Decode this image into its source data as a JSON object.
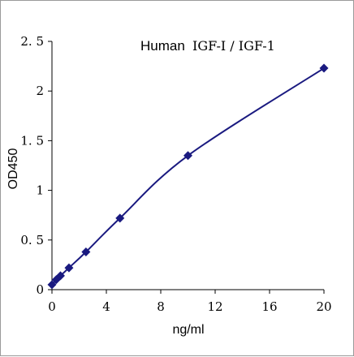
{
  "chart_data": {
    "type": "line",
    "title_main": "Human",
    "title_detail": "IGF-Ⅰ / IGF-1",
    "xlabel": "ng/ml",
    "ylabel": "OD450",
    "xlim": [
      0,
      20
    ],
    "ylim": [
      0,
      2.5
    ],
    "x_ticks": [
      0,
      4,
      8,
      12,
      16,
      20
    ],
    "x_tick_labels": [
      "0",
      "4",
      "8",
      "12",
      "16",
      "20"
    ],
    "y_ticks": [
      0,
      0.5,
      1,
      1.5,
      2,
      2.5
    ],
    "y_tick_labels": [
      "0",
      "0. 5",
      "1",
      "1. 5",
      "2",
      "2. 5"
    ],
    "grid": false,
    "legend": "none",
    "series": [
      {
        "color": "#1a1a80",
        "marker": "diamond",
        "x": [
          0,
          0.3125,
          0.625,
          1.25,
          2.5,
          5,
          10,
          20
        ],
        "y": [
          0.05,
          0.1,
          0.14,
          0.22,
          0.38,
          0.72,
          1.35,
          2.23
        ]
      }
    ]
  }
}
